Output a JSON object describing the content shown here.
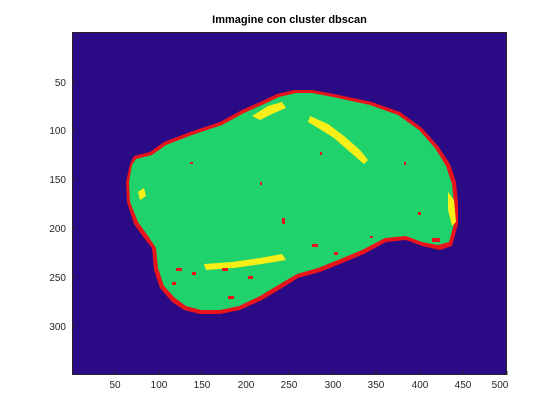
{
  "figure": {
    "title": "Immagine con cluster dbscan"
  },
  "colors": {
    "background_cluster": "#2a0a85",
    "main_cluster": "#1fd26c",
    "edge_cluster": "#e8141c",
    "highlight_cluster": "#f7ef17"
  },
  "axes": {
    "x_ticks": [
      "50",
      "100",
      "150",
      "200",
      "250",
      "300",
      "350",
      "400",
      "450",
      "500"
    ],
    "y_ticks": [
      "50",
      "100",
      "150",
      "200",
      "250",
      "300"
    ]
  }
}
